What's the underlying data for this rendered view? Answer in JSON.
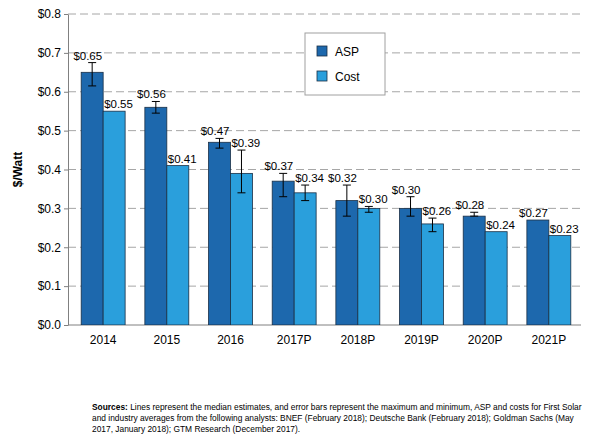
{
  "chart_data": {
    "type": "bar",
    "y_label": "$/Watt",
    "categories": [
      "2014",
      "2015",
      "2016",
      "2017P",
      "2018P",
      "2019P",
      "2020P",
      "2021P"
    ],
    "series": [
      {
        "name": "ASP",
        "color": "#1d68ad",
        "values": [
          0.65,
          0.56,
          0.47,
          0.37,
          0.32,
          0.3,
          0.28,
          0.27
        ],
        "value_labels": [
          "$0.65",
          "$0.56",
          "$0.47",
          "$0.37",
          "$0.32",
          "$0.30",
          "$0.28",
          "$0.27"
        ],
        "min": [
          0.615,
          0.545,
          0.455,
          0.33,
          0.28,
          0.28,
          0.28,
          null
        ],
        "max": [
          0.675,
          0.575,
          0.48,
          0.39,
          0.36,
          0.33,
          0.29,
          null
        ]
      },
      {
        "name": "Cost",
        "color": "#2a9fdc",
        "values": [
          0.55,
          0.41,
          0.39,
          0.34,
          0.3,
          0.26,
          0.24,
          0.23
        ],
        "value_labels": [
          "$0.55",
          "$0.41",
          "$0.39",
          "$0.34",
          "$0.30",
          "$0.26",
          "$0.24",
          "$0.23"
        ],
        "min": [
          null,
          null,
          0.34,
          0.32,
          0.29,
          0.24,
          null,
          null
        ],
        "max": [
          null,
          null,
          0.45,
          0.36,
          0.305,
          0.275,
          null,
          null
        ]
      }
    ],
    "ylim": [
      0,
      0.8
    ],
    "yticks": [
      {
        "value": 0,
        "label": "$0.0"
      },
      {
        "value": 0.1,
        "label": "$0.1"
      },
      {
        "value": 0.2,
        "label": "$0.2"
      },
      {
        "value": 0.3,
        "label": "$0.3"
      },
      {
        "value": 0.4,
        "label": "$0.4"
      },
      {
        "value": 0.5,
        "label": "$0.5"
      },
      {
        "value": 0.6,
        "label": "$0.6"
      },
      {
        "value": 0.7,
        "label": "$0.7"
      },
      {
        "value": 0.8,
        "label": "$0.8"
      }
    ],
    "grid": true,
    "legend": "top-right",
    "data_labels": true,
    "source": {
      "label": "Sources:",
      "text": "Lines represent the median estimates, and error bars represent the maximum and minimum, ASP and costs for First Solar and industry averages from the following analysts: BNEF (February 2018); Deutsche Bank (February 2018); Goldman Sachs (May 2017, January 2018); GTM Research (December 2017)."
    }
  }
}
